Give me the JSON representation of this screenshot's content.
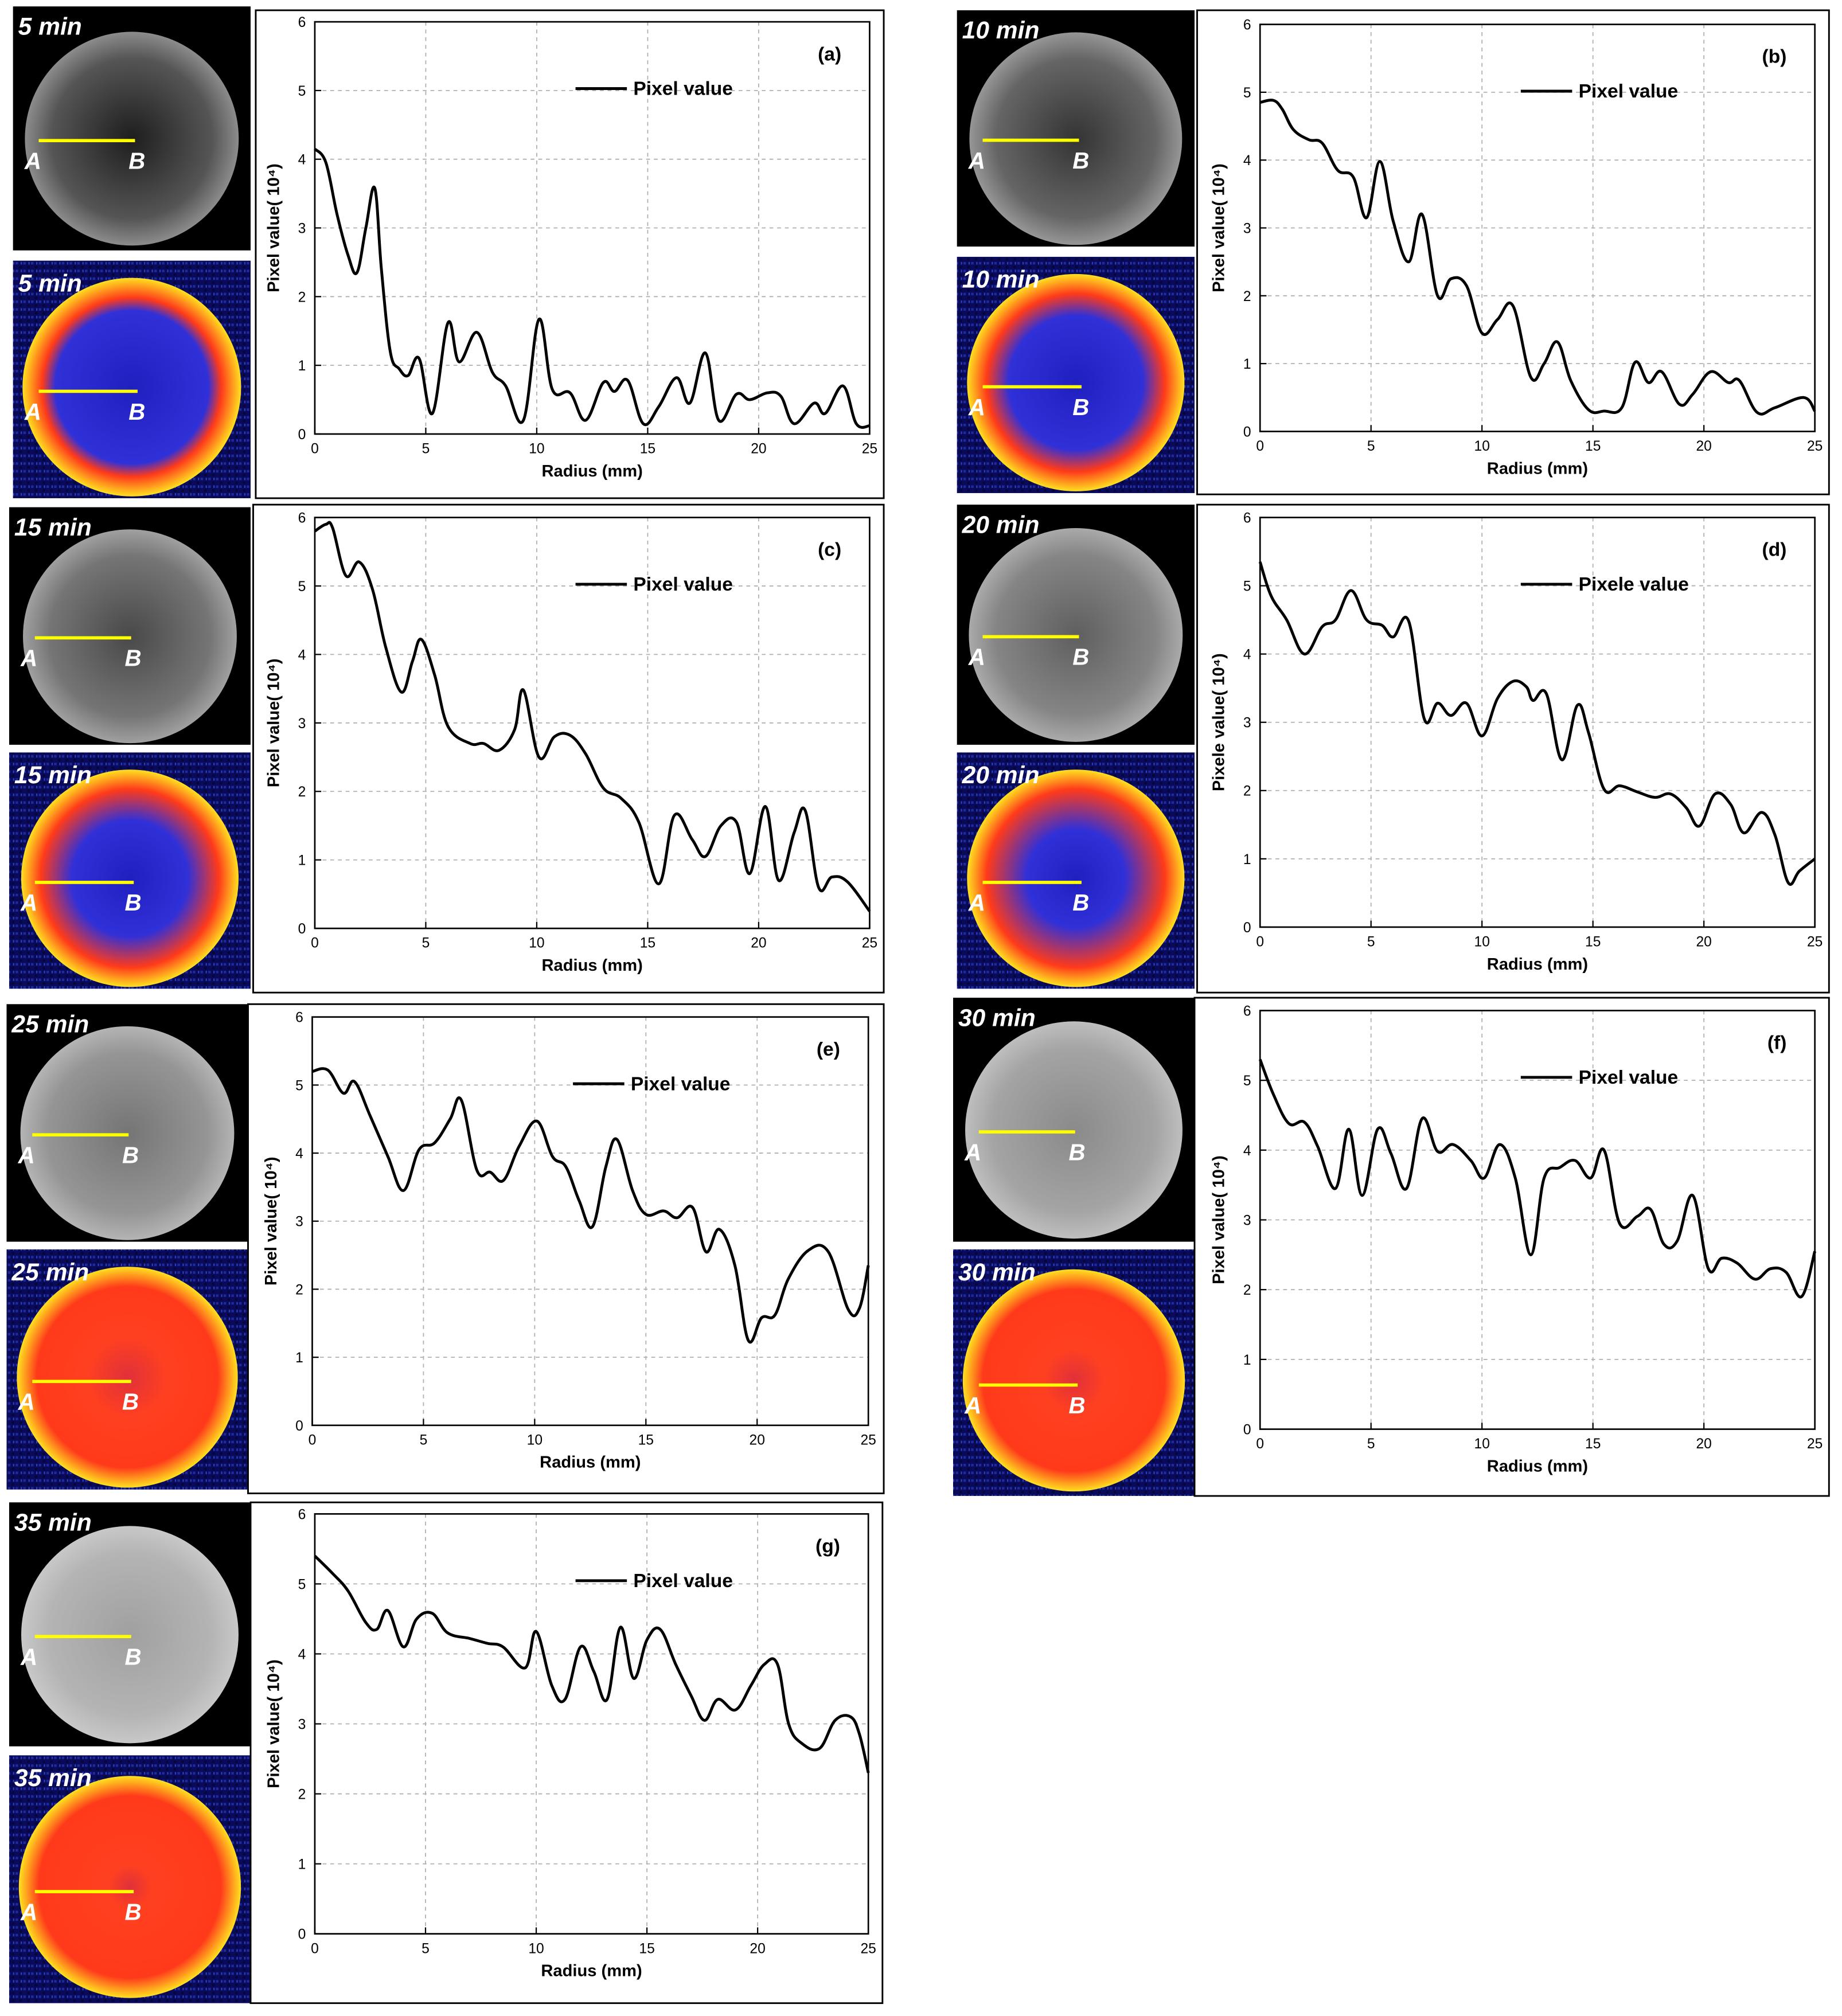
{
  "chart_data": [
    {
      "type": "line",
      "panel": "(a)",
      "time": "5 min",
      "point_a": "A",
      "point_b": "B",
      "x_label": "Radius (mm)",
      "y_label": "Pixel value( 10⁴)",
      "xlim": [
        0,
        25
      ],
      "ylim": [
        0,
        6
      ],
      "xticks": [
        0,
        5,
        10,
        15,
        20,
        25
      ],
      "yticks": [
        0,
        1,
        2,
        3,
        4,
        5,
        6
      ],
      "grid": true,
      "x": [
        0,
        0.5,
        1,
        1.5,
        1.9,
        2.3,
        2.7,
        3.0,
        3.4,
        3.8,
        4.2,
        4.7,
        5.3,
        6.0,
        6.5,
        7.3,
        8.0,
        8.6,
        9.4,
        10.1,
        10.7,
        11.5,
        12.2,
        13.0,
        13.5,
        14.1,
        14.8,
        15.5,
        16.3,
        16.9,
        17.6,
        18.2,
        19.0,
        19.6,
        20.4,
        21.0,
        21.6,
        22.5,
        23.0,
        23.8,
        24.4,
        25
      ],
      "series": [
        {
          "name": "Pixel value",
          "color": "#000000",
          "values": [
            4.15,
            3.95,
            3.2,
            2.6,
            2.35,
            3.0,
            3.58,
            2.4,
            1.2,
            0.95,
            0.85,
            1.1,
            0.3,
            1.62,
            1.05,
            1.48,
            0.9,
            0.7,
            0.2,
            1.67,
            0.65,
            0.6,
            0.2,
            0.75,
            0.62,
            0.78,
            0.15,
            0.4,
            0.82,
            0.45,
            1.18,
            0.2,
            0.58,
            0.5,
            0.6,
            0.55,
            0.15,
            0.45,
            0.3,
            0.7,
            0.15,
            0.12
          ]
        }
      ]
    },
    {
      "type": "line",
      "panel": "(b)",
      "time": "10 min",
      "point_a": "A",
      "point_b": "B",
      "x_label": "Radius (mm)",
      "y_label": "Pixel value( 10⁴)",
      "xlim": [
        0,
        25
      ],
      "ylim": [
        0,
        6
      ],
      "xticks": [
        0,
        5,
        10,
        15,
        20,
        25
      ],
      "yticks": [
        0,
        1,
        2,
        3,
        4,
        5,
        6
      ],
      "grid": true,
      "x": [
        0,
        0.6,
        1.0,
        1.5,
        2.2,
        2.8,
        3.5,
        4.2,
        4.8,
        5.4,
        6.0,
        6.7,
        7.3,
        8.0,
        8.6,
        9.3,
        10.0,
        10.7,
        11.4,
        12.2,
        12.8,
        13.4,
        14.0,
        14.8,
        15.5,
        16.3,
        16.9,
        17.5,
        18.1,
        18.9,
        19.5,
        20.3,
        21.1,
        21.6,
        22.4,
        23.2,
        24.5,
        25
      ],
      "series": [
        {
          "name": "Pixel value",
          "color": "#000000",
          "values": [
            4.85,
            4.88,
            4.75,
            4.45,
            4.3,
            4.25,
            3.85,
            3.75,
            3.15,
            3.98,
            3.1,
            2.5,
            3.2,
            2.0,
            2.25,
            2.15,
            1.45,
            1.65,
            1.85,
            0.8,
            1.0,
            1.32,
            0.75,
            0.32,
            0.3,
            0.35,
            1.02,
            0.72,
            0.88,
            0.4,
            0.55,
            0.88,
            0.72,
            0.75,
            0.28,
            0.35,
            0.5,
            0.3
          ]
        }
      ]
    },
    {
      "type": "line",
      "panel": "(c)",
      "time": "15 min",
      "point_a": "A",
      "point_b": "B",
      "x_label": "Radius (mm)",
      "y_label": "Pixel value( 10⁴)",
      "xlim": [
        0,
        25
      ],
      "ylim": [
        0,
        6
      ],
      "xticks": [
        0,
        5,
        10,
        15,
        20,
        25
      ],
      "yticks": [
        0,
        1,
        2,
        3,
        4,
        5,
        6
      ],
      "grid": true,
      "x": [
        0,
        0.5,
        0.8,
        1.4,
        2.0,
        2.6,
        3.2,
        3.9,
        4.4,
        4.8,
        5.4,
        6.0,
        7.0,
        7.6,
        8.3,
        9.0,
        9.4,
        10.1,
        10.8,
        11.5,
        12.2,
        13.0,
        13.8,
        14.6,
        15.5,
        16.2,
        17.0,
        17.6,
        18.3,
        19.0,
        19.6,
        20.3,
        20.9,
        21.6,
        22.1,
        22.7,
        23.3,
        24.0,
        25
      ],
      "series": [
        {
          "name": "Pixel value",
          "color": "#000000",
          "values": [
            5.8,
            5.9,
            5.85,
            5.15,
            5.35,
            4.95,
            4.1,
            3.45,
            3.9,
            4.22,
            3.7,
            2.95,
            2.7,
            2.7,
            2.6,
            2.9,
            3.48,
            2.5,
            2.8,
            2.82,
            2.55,
            2.05,
            1.9,
            1.55,
            0.65,
            1.65,
            1.3,
            1.05,
            1.5,
            1.55,
            0.8,
            1.78,
            0.7,
            1.4,
            1.72,
            0.6,
            0.75,
            0.68,
            0.25
          ]
        }
      ]
    },
    {
      "type": "line",
      "panel": "(d)",
      "time": "20 min",
      "point_a": "A",
      "point_b": "B",
      "x_label": "Radius (mm)",
      "y_label": "Pixele value( 10⁴)",
      "xlim": [
        0,
        25
      ],
      "ylim": [
        0,
        6
      ],
      "xticks": [
        0,
        5,
        10,
        15,
        20,
        25
      ],
      "yticks": [
        0,
        1,
        2,
        3,
        4,
        5,
        6
      ],
      "grid": true,
      "x": [
        0,
        0.5,
        1.2,
        2.0,
        2.8,
        3.4,
        4.1,
        4.8,
        5.5,
        6.0,
        6.7,
        7.4,
        8.0,
        8.6,
        9.3,
        10.0,
        10.7,
        11.4,
        12.0,
        12.3,
        12.9,
        13.6,
        14.3,
        14.8,
        15.5,
        16.2,
        17.0,
        17.8,
        18.5,
        19.2,
        19.8,
        20.5,
        21.2,
        21.8,
        22.6,
        23.2,
        23.8,
        24.3,
        25
      ],
      "series": [
        {
          "name": "Pixele value",
          "color": "#000000",
          "values": [
            5.35,
            4.85,
            4.5,
            4.0,
            4.4,
            4.5,
            4.93,
            4.5,
            4.42,
            4.25,
            4.48,
            3.05,
            3.28,
            3.1,
            3.28,
            2.8,
            3.35,
            3.6,
            3.52,
            3.32,
            3.42,
            2.45,
            3.25,
            2.85,
            2.02,
            2.07,
            1.98,
            1.9,
            1.95,
            1.75,
            1.48,
            1.95,
            1.8,
            1.38,
            1.68,
            1.35,
            0.65,
            0.82,
            1.0
          ]
        }
      ]
    },
    {
      "type": "line",
      "panel": "(e)",
      "time": "25 min",
      "point_a": "A",
      "point_b": "B",
      "x_label": "Radius (mm)",
      "y_label": "Pixel value( 10⁴)",
      "xlim": [
        0,
        25
      ],
      "ylim": [
        0,
        6
      ],
      "xticks": [
        0,
        5,
        10,
        15,
        20,
        25
      ],
      "yticks": [
        0,
        1,
        2,
        3,
        4,
        5,
        6
      ],
      "grid": true,
      "x": [
        0,
        0.7,
        1.4,
        1.9,
        2.6,
        3.4,
        4.1,
        4.8,
        5.5,
        6.2,
        6.7,
        7.4,
        8.0,
        8.6,
        9.3,
        10.1,
        10.8,
        11.4,
        12.0,
        12.6,
        13.2,
        13.7,
        14.4,
        15.0,
        15.8,
        16.4,
        17.1,
        17.7,
        18.3,
        19.0,
        19.6,
        20.2,
        20.8,
        21.4,
        22.3,
        23.2,
        24.1,
        24.6,
        25
      ],
      "series": [
        {
          "name": "Pixel value",
          "color": "#000000",
          "values": [
            5.2,
            5.22,
            4.88,
            5.05,
            4.55,
            3.95,
            3.45,
            4.05,
            4.15,
            4.5,
            4.78,
            3.75,
            3.72,
            3.6,
            4.1,
            4.47,
            3.95,
            3.8,
            3.3,
            2.92,
            3.8,
            4.2,
            3.45,
            3.1,
            3.15,
            3.05,
            3.2,
            2.55,
            2.88,
            2.35,
            1.25,
            1.58,
            1.62,
            2.15,
            2.57,
            2.55,
            1.7,
            1.72,
            2.35
          ]
        }
      ]
    },
    {
      "type": "line",
      "panel": "(f)",
      "time": "30 min",
      "point_a": "A",
      "point_b": "B",
      "x_label": "Radius (mm)",
      "y_label": "Pixel value( 10⁴)",
      "xlim": [
        0,
        25
      ],
      "ylim": [
        0,
        6
      ],
      "xticks": [
        0,
        5,
        10,
        15,
        20,
        25
      ],
      "yticks": [
        0,
        1,
        2,
        3,
        4,
        5,
        6
      ],
      "grid": true,
      "x": [
        0,
        0.6,
        1.3,
        2.0,
        2.6,
        3.4,
        4.0,
        4.6,
        5.3,
        5.9,
        6.6,
        7.3,
        8.0,
        8.7,
        9.5,
        10.1,
        10.8,
        11.5,
        12.2,
        12.8,
        13.5,
        14.2,
        14.9,
        15.5,
        16.2,
        17.0,
        17.6,
        18.2,
        18.8,
        19.5,
        20.2,
        20.8,
        21.5,
        22.3,
        23.0,
        23.7,
        24.4,
        25
      ],
      "series": [
        {
          "name": "Pixel value",
          "color": "#000000",
          "values": [
            5.3,
            4.8,
            4.38,
            4.4,
            4.05,
            3.45,
            4.3,
            3.35,
            4.3,
            3.95,
            3.45,
            4.45,
            3.98,
            4.08,
            3.85,
            3.6,
            4.08,
            3.6,
            2.5,
            3.6,
            3.75,
            3.85,
            3.6,
            4.0,
            2.95,
            3.05,
            3.15,
            2.65,
            2.7,
            3.35,
            2.3,
            2.45,
            2.38,
            2.15,
            2.3,
            2.25,
            1.9,
            2.55
          ]
        }
      ]
    },
    {
      "type": "line",
      "panel": "(g)",
      "time": "35 min",
      "point_a": "A",
      "point_b": "B",
      "x_label": "Radius (mm)",
      "y_label": "Pixel value( 10⁴)",
      "xlim": [
        0,
        25
      ],
      "ylim": [
        0,
        6
      ],
      "xticks": [
        0,
        5,
        10,
        15,
        20,
        25
      ],
      "yticks": [
        0,
        1,
        2,
        3,
        4,
        5,
        6
      ],
      "grid": true,
      "x": [
        0,
        0.8,
        1.5,
        2.3,
        2.8,
        3.3,
        4.0,
        4.6,
        5.3,
        6.0,
        7.0,
        7.8,
        8.5,
        9.5,
        10.0,
        10.7,
        11.3,
        12.0,
        12.6,
        13.2,
        13.8,
        14.4,
        15.0,
        15.6,
        16.3,
        17.0,
        17.6,
        18.2,
        19.0,
        19.7,
        20.3,
        20.9,
        21.4,
        22.0,
        22.8,
        23.5,
        24.2,
        24.6,
        25
      ],
      "series": [
        {
          "name": "Pixel value",
          "color": "#000000",
          "values": [
            5.4,
            5.15,
            4.9,
            4.45,
            4.35,
            4.62,
            4.1,
            4.5,
            4.58,
            4.3,
            4.22,
            4.15,
            4.1,
            3.8,
            4.32,
            3.55,
            3.35,
            4.1,
            3.75,
            3.35,
            4.38,
            3.65,
            4.2,
            4.35,
            3.85,
            3.4,
            3.05,
            3.35,
            3.2,
            3.55,
            3.85,
            3.85,
            3.0,
            2.72,
            2.65,
            3.05,
            3.1,
            2.85,
            2.3
          ]
        }
      ]
    }
  ]
}
